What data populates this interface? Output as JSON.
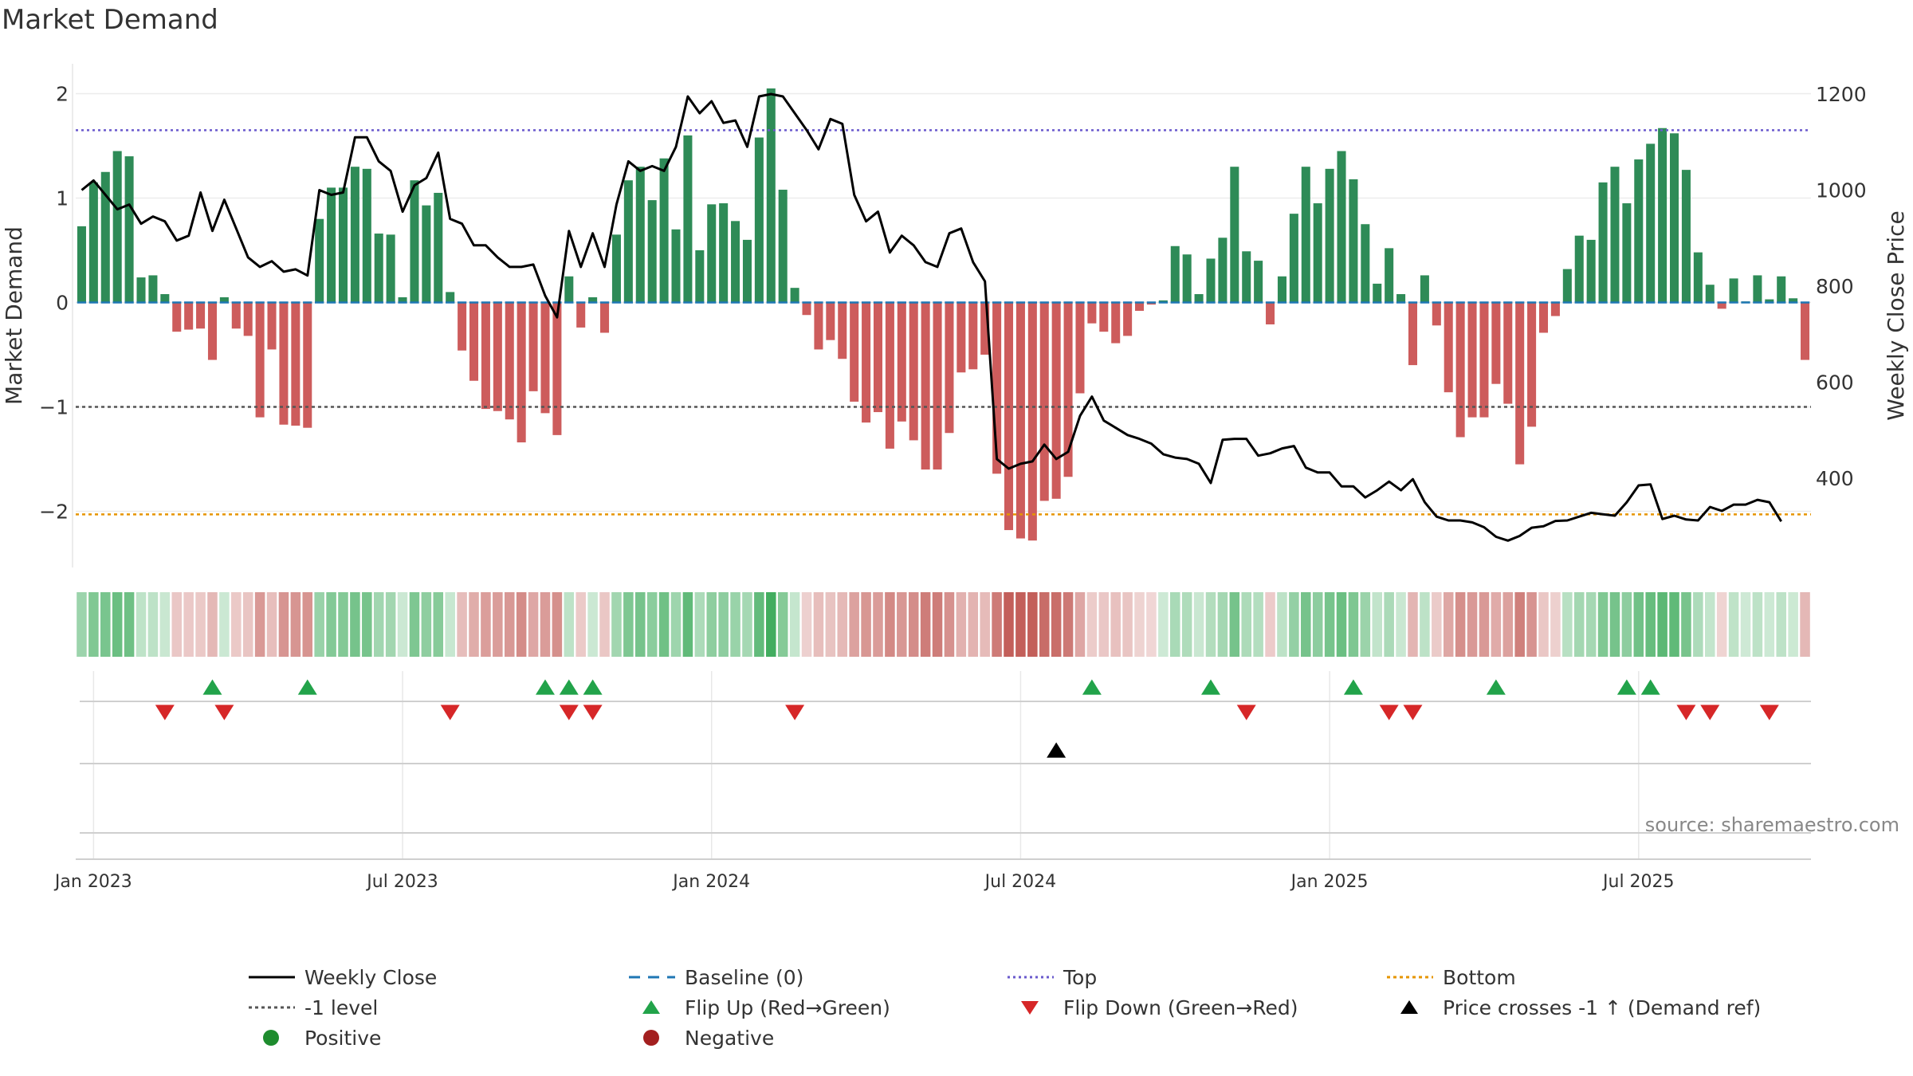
{
  "chart_data": {
    "type": "bar",
    "title": "Market Demand",
    "ylabel": "Market Demand",
    "y2label": "Weekly Close Price",
    "ylim": [
      -2.5,
      2.2
    ],
    "y2lim": [
      220,
      1240
    ],
    "yticks": [
      {
        "v": 2,
        "label": "2"
      },
      {
        "v": 1,
        "label": "1"
      },
      {
        "v": 0,
        "label": "0"
      },
      {
        "v": -1,
        "label": "−1"
      },
      {
        "v": -2,
        "label": "−2"
      }
    ],
    "y2ticks": [
      {
        "v": 1200,
        "label": "1200"
      },
      {
        "v": 1000,
        "label": "1000"
      },
      {
        "v": 800,
        "label": "800"
      },
      {
        "v": 600,
        "label": "600"
      },
      {
        "v": 400,
        "label": "400"
      }
    ],
    "xticks": [
      {
        "i": 1,
        "label": "Jan 2023"
      },
      {
        "i": 27,
        "label": "Jul 2023"
      },
      {
        "i": 53,
        "label": "Jan 2024"
      },
      {
        "i": 79,
        "label": "Jul 2024"
      },
      {
        "i": 105,
        "label": "Jan 2025"
      },
      {
        "i": 131,
        "label": "Jul 2025"
      }
    ],
    "start_week": "2022-12-26",
    "levels": {
      "top": 1.65,
      "minus1": -1.0,
      "bottom": -2.03,
      "baseline": 0
    },
    "demand": [
      0.73,
      1.15,
      1.25,
      1.45,
      1.4,
      0.24,
      0.26,
      0.08,
      -0.28,
      -0.26,
      -0.25,
      -0.55,
      0.05,
      -0.25,
      -0.32,
      -1.1,
      -0.45,
      -1.17,
      -1.18,
      -1.2,
      0.8,
      1.1,
      1.1,
      1.3,
      1.28,
      0.66,
      0.65,
      0.05,
      1.17,
      0.93,
      1.05,
      0.1,
      -0.46,
      -0.75,
      -1.02,
      -1.04,
      -1.12,
      -1.34,
      -0.85,
      -1.06,
      -1.27,
      0.25,
      -0.24,
      0.05,
      -0.29,
      0.65,
      1.17,
      1.3,
      0.98,
      1.38,
      0.7,
      1.6,
      0.5,
      0.94,
      0.95,
      0.78,
      0.6,
      1.58,
      2.05,
      1.08,
      0.14,
      -0.12,
      -0.45,
      -0.36,
      -0.54,
      -0.95,
      -1.15,
      -1.05,
      -1.4,
      -1.14,
      -1.32,
      -1.6,
      -1.6,
      -1.25,
      -0.67,
      -0.64,
      -0.5,
      -1.64,
      -2.18,
      -2.26,
      -2.28,
      -1.9,
      -1.88,
      -1.67,
      -0.87,
      -0.2,
      -0.28,
      -0.39,
      -0.32,
      -0.08,
      -0.02,
      0.02,
      0.54,
      0.46,
      0.08,
      0.42,
      0.62,
      1.3,
      0.49,
      0.4,
      -0.21,
      0.25,
      0.85,
      1.3,
      0.95,
      1.28,
      1.45,
      1.18,
      0.75,
      0.18,
      0.52,
      0.08,
      -0.6,
      0.26,
      -0.22,
      -0.86,
      -1.29,
      -1.1,
      -1.1,
      -0.78,
      -0.97,
      -1.55,
      -1.19,
      -0.29,
      -0.13,
      0.32,
      0.64,
      0.6,
      1.15,
      1.3,
      0.95,
      1.37,
      1.52,
      1.67,
      1.62,
      1.27,
      0.48,
      0.17,
      -0.06,
      0.23,
      0.01,
      0.26,
      0.03,
      0.25,
      0.04,
      -0.55
    ],
    "close": [
      1000,
      1020,
      990,
      960,
      970,
      930,
      945,
      935,
      895,
      905,
      995,
      915,
      980,
      920,
      860,
      840,
      852,
      830,
      835,
      822,
      1000,
      990,
      995,
      1110,
      1110,
      1060,
      1040,
      955,
      1010,
      1025,
      1078,
      940,
      930,
      885,
      885,
      860,
      840,
      840,
      845,
      780,
      735,
      915,
      840,
      910,
      840,
      970,
      1060,
      1040,
      1050,
      1040,
      1090,
      1195,
      1160,
      1185,
      1140,
      1145,
      1090,
      1195,
      1200,
      1195,
      1160,
      1125,
      1085,
      1148,
      1138,
      990,
      935,
      955,
      870,
      905,
      885,
      850,
      840,
      910,
      920,
      850,
      810,
      440,
      420,
      430,
      435,
      470,
      440,
      455,
      530,
      570,
      520,
      505,
      490,
      482,
      472,
      450,
      443,
      440,
      430,
      390,
      480,
      482,
      482,
      447,
      452,
      462,
      467,
      422,
      412,
      412,
      383,
      383,
      360,
      375,
      393,
      375,
      398,
      350,
      320,
      312,
      312,
      308,
      298,
      278,
      270,
      280,
      297,
      300,
      311,
      312,
      320,
      328,
      325,
      322,
      350,
      385,
      387,
      315,
      322,
      314,
      312,
      340,
      332,
      345,
      345,
      355,
      350,
      310
    ],
    "flip_up": [
      11,
      19,
      39,
      41,
      43,
      85,
      95,
      107,
      119,
      130,
      132
    ],
    "flip_down": [
      7,
      12,
      31,
      41,
      43,
      60,
      98,
      110,
      112,
      135,
      137,
      142
    ],
    "price_cross": [
      82
    ],
    "legend": [
      {
        "key": "close",
        "label": "Weekly Close"
      },
      {
        "key": "baseline",
        "label": "Baseline (0)"
      },
      {
        "key": "top",
        "label": "Top"
      },
      {
        "key": "bottom",
        "label": "Bottom"
      },
      {
        "key": "minus1",
        "label": "-1 level"
      },
      {
        "key": "flipup",
        "label": "Flip Up (Red→Green)"
      },
      {
        "key": "flipdown",
        "label": "Flip Down (Green→Red)"
      },
      {
        "key": "cross",
        "label": "Price crosses -1 ↑ (Demand ref)"
      },
      {
        "key": "pos",
        "label": "Positive"
      },
      {
        "key": "neg",
        "label": "Negative"
      }
    ],
    "colors": {
      "pos_bar": "#2e8b57",
      "neg_bar": "#cd5c5c",
      "close": "#000000",
      "baseline": "#1f77b4",
      "top": "#6a5acd",
      "bottom": "#e69500",
      "minus1": "#555555",
      "flip_up": "#22a34a",
      "flip_down": "#d62728",
      "cross": "#000000",
      "pos_dot": "#1e8c2e",
      "neg_dot": "#a31f1f"
    },
    "source": "source: sharemaestro.com"
  }
}
